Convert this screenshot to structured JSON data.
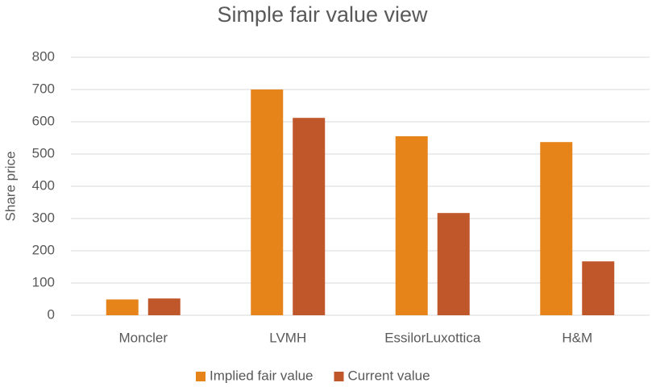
{
  "chart_data": {
    "type": "bar",
    "title": "Simple fair value view",
    "y_label": "Share price",
    "categories": [
      "Moncler",
      "LVMH",
      "EssilorLuxottica",
      "H&M"
    ],
    "series": [
      {
        "name": "Implied fair value",
        "color": "#e6841a",
        "values": [
          49,
          700,
          555,
          537
        ]
      },
      {
        "name": "Current value",
        "color": "#c0572b",
        "values": [
          52,
          612,
          317,
          167
        ]
      }
    ],
    "ylim": [
      0,
      800
    ],
    "yticks": [
      0,
      100,
      200,
      300,
      400,
      500,
      600,
      700,
      800
    ],
    "grid": true,
    "legend": "bottom"
  }
}
